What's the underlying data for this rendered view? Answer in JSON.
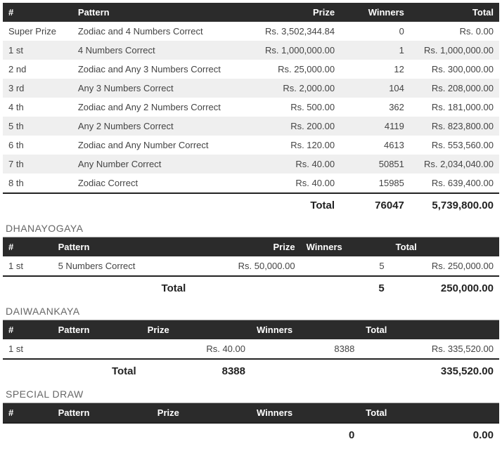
{
  "colors": {
    "header_bg": "#2b2b2b",
    "header_fg": "#ffffff",
    "row_even": "#ffffff",
    "row_odd": "#efefef",
    "total_border": "#222222",
    "section_title": "#666666"
  },
  "main": {
    "columns": [
      "#",
      "Pattern",
      "Prize",
      "Winners",
      "Total"
    ],
    "col_align": [
      "left",
      "left",
      "right",
      "right",
      "right"
    ],
    "rows": [
      [
        "Super Prize",
        "Zodiac and 4 Numbers Correct",
        "Rs. 3,502,344.84",
        "0",
        "Rs. 0.00"
      ],
      [
        "1 st",
        "4 Numbers Correct",
        "Rs. 1,000,000.00",
        "1",
        "Rs. 1,000,000.00"
      ],
      [
        "2 nd",
        "Zodiac and Any 3 Numbers Correct",
        "Rs. 25,000.00",
        "12",
        "Rs. 300,000.00"
      ],
      [
        "3 rd",
        "Any 3 Numbers Correct",
        "Rs. 2,000.00",
        "104",
        "Rs. 208,000.00"
      ],
      [
        "4 th",
        "Zodiac and Any 2 Numbers Correct",
        "Rs. 500.00",
        "362",
        "Rs. 181,000.00"
      ],
      [
        "5 th",
        "Any 2 Numbers Correct",
        "Rs. 200.00",
        "4119",
        "Rs. 823,800.00"
      ],
      [
        "6 th",
        "Zodiac and Any Number Correct",
        "Rs. 120.00",
        "4613",
        "Rs. 553,560.00"
      ],
      [
        "7 th",
        "Any Number Correct",
        "Rs. 40.00",
        "50851",
        "Rs. 2,034,040.00"
      ],
      [
        "8 th",
        "Zodiac Correct",
        "Rs. 40.00",
        "15985",
        "Rs. 639,400.00"
      ]
    ],
    "total_label": "Total",
    "total_winners": "76047",
    "total_amount": "5,739,800.00"
  },
  "dhanayogaya": {
    "title": "DHANAYOGAYA",
    "columns": [
      "#",
      "Pattern",
      "Prize",
      "Winners",
      "Total"
    ],
    "col_align": [
      "left",
      "left",
      "right",
      "right",
      "right"
    ],
    "rows": [
      [
        "1 st",
        "5 Numbers Correct",
        "Rs. 50,000.00",
        "5",
        "Rs. 250,000.00"
      ]
    ],
    "total_label": "Total",
    "total_winners": "5",
    "total_amount": "250,000.00"
  },
  "daiwaankaya": {
    "title": "DAIWAANKAYA",
    "columns": [
      "#",
      "Pattern",
      "Prize",
      "Winners",
      "Total"
    ],
    "col_align": [
      "left",
      "left",
      "right",
      "right",
      "right"
    ],
    "rows": [
      [
        "1 st",
        "",
        "Rs. 40.00",
        "8388",
        "Rs. 335,520.00"
      ]
    ],
    "total_label": "Total",
    "total_winners": "8388",
    "total_amount": "335,520.00"
  },
  "special": {
    "title": "SPECIAL DRAW",
    "columns": [
      "#",
      "Pattern",
      "Prize",
      "Winners",
      "Total"
    ],
    "col_align": [
      "left",
      "left",
      "right",
      "right",
      "right"
    ],
    "rows": [],
    "total_label": "",
    "total_winners": "0",
    "total_amount": "0.00"
  }
}
